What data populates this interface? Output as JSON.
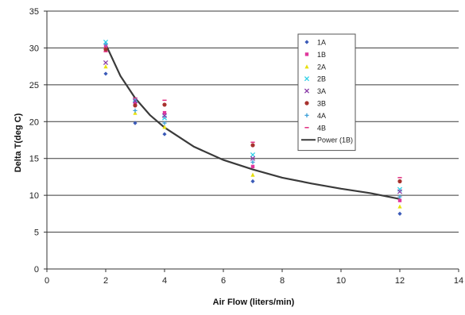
{
  "chart_data": {
    "type": "scatter",
    "title": "",
    "xlabel": "Air Flow (liters/min)",
    "ylabel": "Delta T(deg C)",
    "xlim": [
      0,
      14
    ],
    "ylim": [
      0,
      35
    ],
    "xticks": [
      0,
      2,
      4,
      6,
      8,
      10,
      12,
      14
    ],
    "yticks": [
      0,
      5,
      10,
      15,
      20,
      25,
      30,
      35
    ],
    "grid": "horizontal",
    "legend_position": "right",
    "series": [
      {
        "name": "1A",
        "color": "#3b5bb8",
        "marker": "diamond",
        "x": [
          2,
          3,
          4,
          7,
          12
        ],
        "y": [
          26.5,
          19.8,
          18.3,
          11.9,
          7.5
        ]
      },
      {
        "name": "1B",
        "color": "#e0389c",
        "marker": "square",
        "x": [
          2,
          3,
          4,
          7,
          12
        ],
        "y": [
          30.2,
          22.5,
          21.2,
          13.9,
          9.3
        ]
      },
      {
        "name": "2A",
        "color": "#e8e010",
        "marker": "triangle",
        "x": [
          2,
          3,
          4,
          7,
          12
        ],
        "y": [
          27.5,
          21.2,
          19.3,
          12.8,
          8.5
        ]
      },
      {
        "name": "2B",
        "color": "#2fd0e6",
        "marker": "x",
        "x": [
          2,
          3,
          4,
          7,
          12
        ],
        "y": [
          30.8,
          23.0,
          20.5,
          15.5,
          10.8
        ]
      },
      {
        "name": "3A",
        "color": "#8a3da8",
        "marker": "x",
        "x": [
          2,
          3,
          4,
          7,
          12
        ],
        "y": [
          28.0,
          22.8,
          20.8,
          15.0,
          10.5
        ]
      },
      {
        "name": "3B",
        "color": "#a8322e",
        "marker": "circle",
        "x": [
          2,
          3,
          4,
          7,
          12
        ],
        "y": [
          29.8,
          22.2,
          22.3,
          16.8,
          11.9
        ]
      },
      {
        "name": "4A",
        "color": "#3ea0d8",
        "marker": "plus",
        "x": [
          2,
          3,
          4,
          7,
          12
        ],
        "y": [
          30.5,
          21.5,
          19.8,
          14.5,
          9.8
        ]
      },
      {
        "name": "4B",
        "color": "#e02a7e",
        "marker": "dash",
        "x": [
          2,
          3,
          4,
          7,
          12
        ],
        "y": [
          29.5,
          23.2,
          22.9,
          17.2,
          12.4
        ]
      }
    ],
    "trendline": {
      "name": "Power (1B)",
      "color": "#3a3a3a",
      "type": "power",
      "x": [
        2,
        2.5,
        3,
        3.5,
        4,
        5,
        6,
        7,
        8,
        9,
        10,
        11,
        12
      ],
      "y": [
        30.5,
        26.2,
        23.2,
        20.9,
        19.2,
        16.6,
        14.8,
        13.5,
        12.4,
        11.6,
        10.9,
        10.3,
        9.5
      ]
    }
  }
}
